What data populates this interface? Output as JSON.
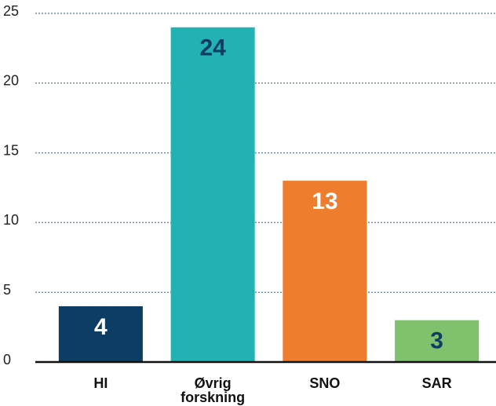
{
  "chart_data": {
    "type": "bar",
    "categories": [
      "HI",
      "Øvrig forskning",
      "SNO",
      "SAR"
    ],
    "values": [
      4,
      24,
      13,
      3
    ],
    "colors": [
      "#0e3d63",
      "#22b2b4",
      "#ef7d2e",
      "#7fc16c"
    ],
    "label_colors": [
      "#ffffff",
      "#0e3d63",
      "#ffffff",
      "#0e3d63"
    ],
    "ylim": [
      0,
      25
    ],
    "yticks": [
      0,
      5,
      10,
      15,
      20,
      25
    ],
    "grid": true
  }
}
